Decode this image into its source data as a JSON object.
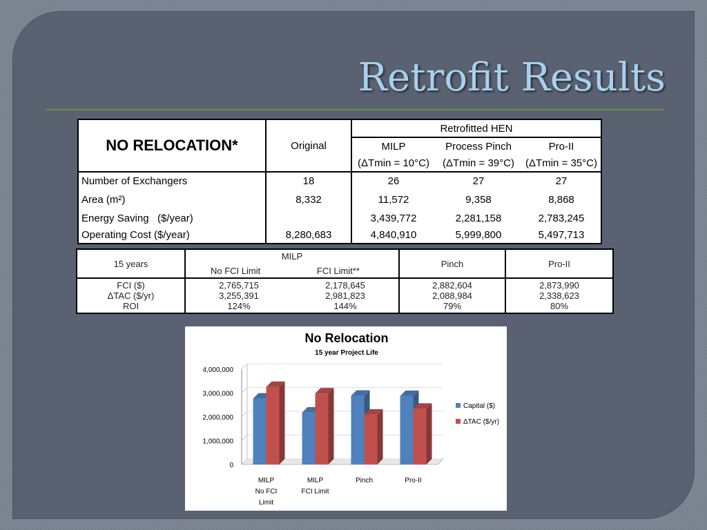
{
  "title": "Retrofit Results",
  "table1": {
    "corner": "NO RELOCATION*",
    "original_label": "Original",
    "group_label": "Retrofitted HEN",
    "methods": [
      "MILP",
      "Process Pinch",
      "Pro-II"
    ],
    "tmins": [
      "(ΔTmin = 10°C)",
      "(ΔTmin = 39°C)",
      "(ΔTmin = 35°C)"
    ],
    "rows": [
      {
        "label": "Number of Exchangers",
        "original": "18",
        "v1": "26",
        "v2": "27",
        "v3": "27"
      },
      {
        "label": "Area (m²)",
        "original": "8,332",
        "v1": "11,572",
        "v2": "9,358",
        "v3": "8,868"
      },
      {
        "label": "Energy Saving   ($/year)",
        "original": "",
        "v1": "3,439,772",
        "v2": "2,281,158",
        "v3": "2,783,245"
      },
      {
        "label": "Operating Cost ($/year)",
        "original": "8,280,683",
        "v1": "4,840,910",
        "v2": "5,999,800",
        "v3": "5,497,713"
      }
    ]
  },
  "table2": {
    "corner": "15 years",
    "milp": "MILP",
    "sub1": "No FCI Limit",
    "sub2": "FCI Limit**",
    "pinch": "Pinch",
    "proii": "Pro-II",
    "labels": [
      "FCI ($)",
      "ΔTAC ($/yr)",
      "ROI"
    ],
    "col1": [
      "2,765,715",
      "3,255,391",
      "124%"
    ],
    "col2": [
      "2,178,645",
      "2,981,823",
      "144%"
    ],
    "col3": [
      "2,882,604",
      "2,088,984",
      "79%"
    ],
    "col4": [
      "2,873,990",
      "2,338,623",
      "80%"
    ]
  },
  "chart_data": {
    "type": "bar",
    "title": "No Relocation",
    "subtitle": "15 year Project Life",
    "categories": [
      "MILP\nNo FCI\nLimit",
      "MILP\nFCI Limit",
      "Pinch",
      "Pro-II"
    ],
    "series": [
      {
        "name": "Capital ($)",
        "color": "#4f81bd",
        "values": [
          2765715,
          2178645,
          2882604,
          2873990
        ]
      },
      {
        "name": "ΔTAC ($/yr)",
        "color": "#c0504d",
        "values": [
          3255391,
          2981823,
          2088984,
          2338623
        ]
      }
    ],
    "yticks": [
      "0",
      "1,000,000",
      "2,000,000",
      "3,000,000",
      "4,000,000"
    ],
    "ylim": [
      0,
      4000000
    ],
    "legend": "right"
  }
}
